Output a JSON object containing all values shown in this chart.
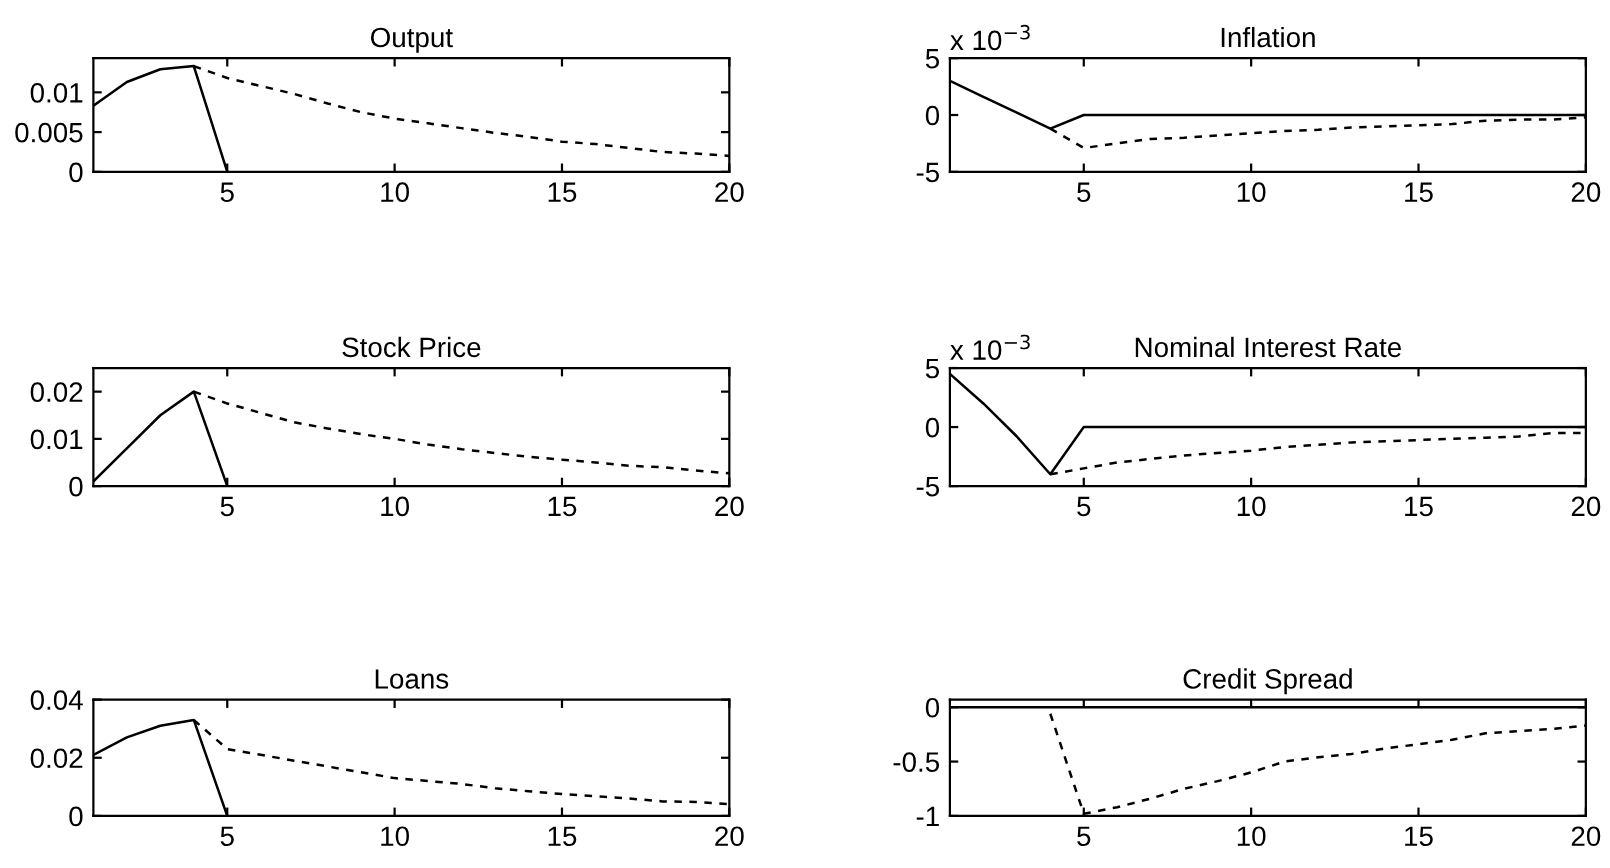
{
  "chart_data": [
    {
      "type": "line",
      "title": "Output",
      "xlim": [
        1,
        20
      ],
      "xticks": [
        5,
        10,
        15,
        20
      ],
      "ylim": [
        0,
        0.0143
      ],
      "yticks": [
        0,
        0.005,
        0.01
      ],
      "grid": false,
      "legend": false,
      "series": [
        {
          "color": "#000000",
          "line_style": "solid",
          "x": [
            1,
            2,
            3,
            4,
            5
          ],
          "values": [
            0.0083,
            0.0113,
            0.0129,
            0.0133,
            0
          ]
        },
        {
          "color": "#000000",
          "line_style": "dashed",
          "x": [
            4,
            5,
            6,
            7,
            8,
            9,
            10,
            11,
            12,
            13,
            14,
            15,
            16,
            17,
            18,
            19,
            20
          ],
          "values": [
            0.0133,
            0.0118,
            0.0108,
            0.0098,
            0.0086,
            0.0075,
            0.0067,
            0.0061,
            0.0055,
            0.0049,
            0.0044,
            0.0038,
            0.0035,
            0.003,
            0.0025,
            0.0023,
            0.002
          ]
        }
      ]
    },
    {
      "type": "line",
      "title": "Inflation",
      "annotations": [
        "x 10$^{−3}$"
      ],
      "xlim": [
        1,
        20
      ],
      "xticks": [
        5,
        10,
        15,
        20
      ],
      "ylim": [
        -5,
        5
      ],
      "yticks": [
        {
          "value": -5,
          "label": "-5"
        },
        0,
        5
      ],
      "grid": false,
      "legend": false,
      "series": [
        {
          "color": "#000000",
          "line_style": "solid",
          "x": [
            1,
            2,
            3,
            4,
            5,
            6,
            7,
            8,
            9,
            10,
            11,
            12,
            13,
            14,
            15,
            16,
            17,
            18,
            19,
            20
          ],
          "values": [
            3,
            1.6,
            0.2,
            -1.2,
            0,
            0,
            0,
            0,
            0,
            0,
            0,
            0,
            0,
            0,
            0,
            0,
            0,
            0,
            0,
            0
          ]
        },
        {
          "color": "#000000",
          "line_style": "dashed",
          "x": [
            4,
            5,
            6,
            7,
            8,
            9,
            10,
            11,
            12,
            13,
            14,
            15,
            16,
            17,
            18,
            19,
            20
          ],
          "values": [
            -1.2,
            -2.9,
            -2.5,
            -2.1,
            -2,
            -1.8,
            -1.6,
            -1.4,
            -1.3,
            -1.1,
            -1,
            -0.9,
            -0.8,
            -0.5,
            -0.4,
            -0.4,
            -0.2
          ]
        }
      ]
    },
    {
      "type": "line",
      "title": "Stock Price",
      "xlim": [
        1,
        20
      ],
      "xticks": [
        5,
        10,
        15,
        20
      ],
      "ylim": [
        0,
        0.025
      ],
      "yticks": [
        0,
        0.01,
        0.02
      ],
      "grid": false,
      "legend": false,
      "series": [
        {
          "color": "#000000",
          "line_style": "solid",
          "x": [
            1,
            2,
            3,
            4,
            5
          ],
          "values": [
            0.001,
            0.008,
            0.015,
            0.02,
            0
          ]
        },
        {
          "color": "#000000",
          "line_style": "dashed",
          "x": [
            4,
            5,
            6,
            7,
            8,
            9,
            10,
            11,
            12,
            13,
            14,
            15,
            16,
            17,
            18,
            19,
            20
          ],
          "values": [
            0.02,
            0.0175,
            0.0155,
            0.0135,
            0.0122,
            0.011,
            0.01,
            0.0088,
            0.0078,
            0.007,
            0.0062,
            0.0056,
            0.005,
            0.0043,
            0.004,
            0.0033,
            0.0027
          ]
        }
      ]
    },
    {
      "type": "line",
      "title": "Nominal Interest Rate",
      "annotations": [
        "x 10$^{−3}$"
      ],
      "xlim": [
        1,
        20
      ],
      "xticks": [
        5,
        10,
        15,
        20
      ],
      "ylim": [
        -5,
        5
      ],
      "yticks": [
        {
          "value": -5,
          "label": "-5"
        },
        0,
        5
      ],
      "grid": false,
      "legend": false,
      "series": [
        {
          "color": "#000000",
          "line_style": "solid",
          "x": [
            1,
            2,
            3,
            4,
            5,
            6,
            7,
            8,
            9,
            10,
            11,
            12,
            13,
            14,
            15,
            16,
            17,
            18,
            19,
            20
          ],
          "values": [
            4.5,
            2,
            -0.8,
            -4,
            0,
            0,
            0,
            0,
            0,
            0,
            0,
            0,
            0,
            0,
            0,
            0,
            0,
            0,
            0,
            0
          ]
        },
        {
          "color": "#000000",
          "line_style": "dashed",
          "x": [
            4,
            5,
            6,
            7,
            8,
            9,
            10,
            11,
            12,
            13,
            14,
            15,
            16,
            17,
            18,
            19,
            20
          ],
          "values": [
            -4,
            -3.5,
            -3,
            -2.7,
            -2.4,
            -2.2,
            -2,
            -1.7,
            -1.5,
            -1.3,
            -1.2,
            -1.1,
            -1,
            -0.9,
            -0.8,
            -0.5,
            -0.5
          ]
        }
      ]
    },
    {
      "type": "line",
      "title": "Loans",
      "xlim": [
        1,
        20
      ],
      "xticks": [
        5,
        10,
        15,
        20
      ],
      "ylim": [
        0,
        0.04
      ],
      "yticks": [
        0,
        0.02,
        0.04
      ],
      "grid": false,
      "legend": false,
      "series": [
        {
          "color": "#000000",
          "line_style": "solid",
          "x": [
            1,
            2,
            3,
            4,
            5
          ],
          "values": [
            0.021,
            0.027,
            0.031,
            0.033,
            0
          ]
        },
        {
          "color": "#000000",
          "line_style": "dashed",
          "x": [
            4,
            5,
            6,
            7,
            8,
            9,
            10,
            11,
            12,
            13,
            14,
            15,
            16,
            17,
            18,
            19,
            20
          ],
          "values": [
            0.033,
            0.023,
            0.021,
            0.019,
            0.017,
            0.015,
            0.013,
            0.012,
            0.011,
            0.0095,
            0.0085,
            0.0075,
            0.0068,
            0.006,
            0.005,
            0.0048,
            0.004
          ]
        }
      ]
    },
    {
      "type": "line",
      "title": "Credit Spread",
      "xlim": [
        1,
        20
      ],
      "xticks": [
        5,
        10,
        15,
        20
      ],
      "ylim": [
        -1,
        0.07
      ],
      "yticks": [
        -1,
        -0.5,
        0
      ],
      "grid": false,
      "legend": false,
      "series": [
        {
          "color": "#000000",
          "line_style": "solid",
          "x": [
            1,
            2,
            3,
            4,
            5,
            6,
            7,
            8,
            9,
            10,
            11,
            12,
            13,
            14,
            15,
            16,
            17,
            18,
            19,
            20
          ],
          "values": [
            0,
            0,
            0,
            0,
            0,
            0,
            0,
            0,
            0,
            0,
            0,
            0,
            0,
            0,
            0,
            0,
            0,
            0,
            0,
            0
          ]
        },
        {
          "color": "#000000",
          "line_style": "dashed",
          "x": [
            4,
            5,
            6,
            7,
            8,
            9,
            10,
            11,
            12,
            13,
            14,
            15,
            16,
            17,
            18,
            19,
            20
          ],
          "values": [
            -0.06,
            -0.98,
            -0.92,
            -0.84,
            -0.75,
            -0.68,
            -0.6,
            -0.5,
            -0.46,
            -0.43,
            -0.38,
            -0.34,
            -0.3,
            -0.24,
            -0.22,
            -0.2,
            -0.17
          ]
        }
      ]
    }
  ]
}
